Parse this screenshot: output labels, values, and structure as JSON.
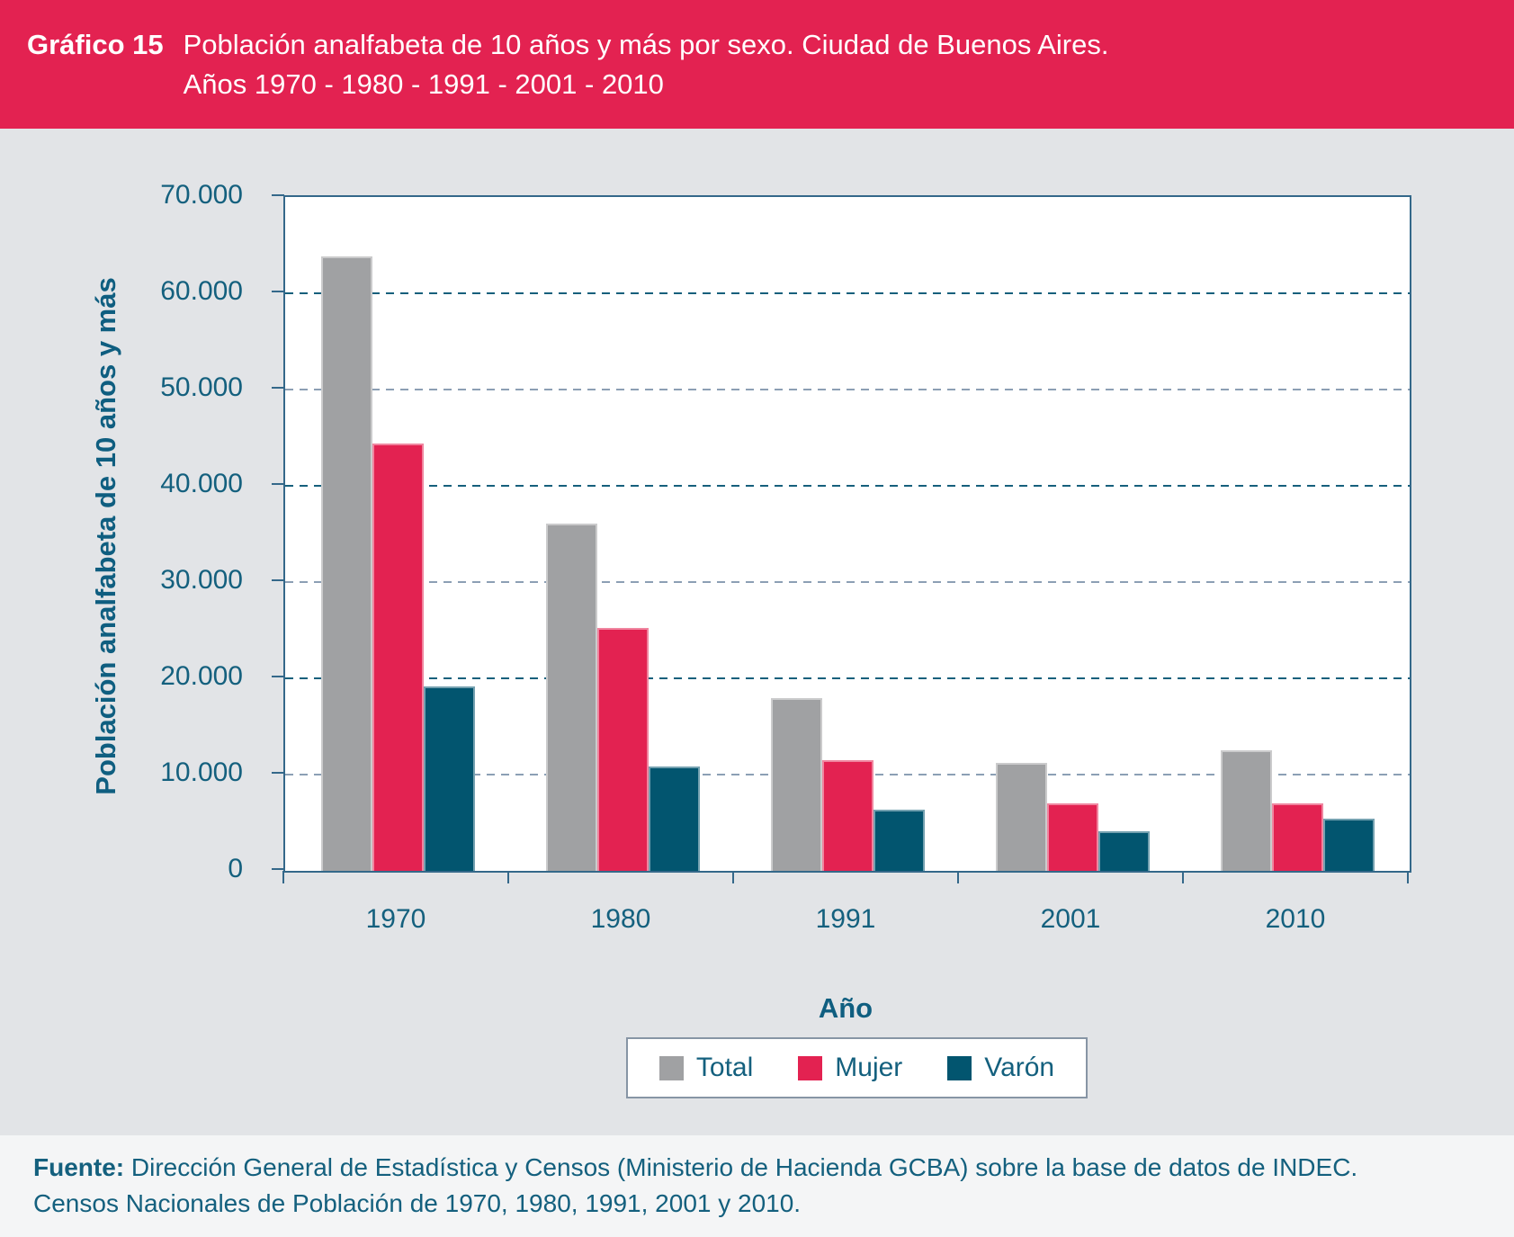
{
  "header": {
    "label": "Gráfico 15",
    "title_line1": "Población analfabeta de 10 años y más por sexo. Ciudad de Buenos Aires.",
    "title_line2": "Años 1970 - 1980 - 1991 - 2001 - 2010"
  },
  "chart_data": {
    "type": "bar",
    "categories": [
      "1970",
      "1980",
      "1991",
      "2001",
      "2010"
    ],
    "series": [
      {
        "name": "Total",
        "color": "#a0a1a3",
        "values": [
          63800,
          36100,
          17900,
          11200,
          12500
        ]
      },
      {
        "name": "Mujer",
        "color": "#e32251",
        "values": [
          44400,
          25200,
          11500,
          7000,
          7000
        ]
      },
      {
        "name": "Varón",
        "color": "#02556f",
        "values": [
          19200,
          10800,
          6400,
          4100,
          5400
        ]
      }
    ],
    "xlabel": "Año",
    "ylabel": "Población analfabeta de 10 años y más",
    "ylim": [
      0,
      70000
    ],
    "ytick_interval": 10000,
    "ytick_labels": [
      "0",
      "10.000",
      "20.000",
      "30.000",
      "40.000",
      "50.000",
      "60.000",
      "70.000"
    ],
    "grid": "horizontal-dashed",
    "legend_position": "bottom-center"
  },
  "footer": {
    "source_label": "Fuente:",
    "source_line1": "Dirección General de Estadística y Censos (Ministerio de Hacienda GCBA) sobre la base de datos de INDEC.",
    "source_line2": "Censos Nacionales de Población de 1970, 1980, 1991, 2001 y 2010."
  },
  "palette": {
    "header_background": "#e32251",
    "panel_background": "#e2e4e7",
    "footer_background": "#f4f5f6",
    "plot_background": "#ffffff",
    "plot_border": "#34688a",
    "grid_dark": "#16607c",
    "grid_light": "#8c9fb4",
    "text_teal": "#14607e",
    "bar_total": "#a0a1a3",
    "bar_mujer": "#e32251",
    "bar_varon": "#02556f"
  }
}
